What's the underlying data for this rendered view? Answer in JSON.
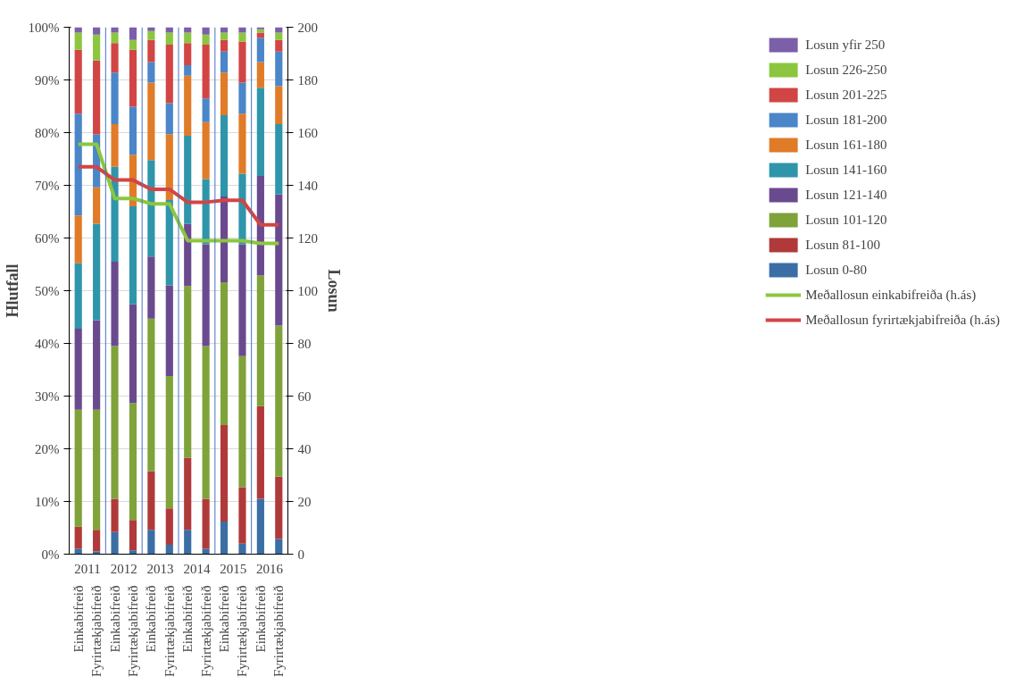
{
  "chart_data": {
    "type": "bar",
    "stacked": true,
    "ylabel": "Hlutfall",
    "y2label": "Losun",
    "categories": [
      "Einkabifreið",
      "Fyrirtækjabifreið",
      "Einkabifreið",
      "Fyrirtækjabifreið",
      "Einkabifreið",
      "Fyrirtækjabifreið",
      "Einkabifreið",
      "Fyrirtækjabifreið",
      "Einkabifreið",
      "Fyrirtækjabifreið",
      "Einkabifreið",
      "Fyrirtækjabifreið"
    ],
    "annotations": [
      "2011",
      "2012",
      "2013",
      "2014",
      "2015",
      "2016"
    ],
    "ylim": [
      0,
      100
    ],
    "yticks": [
      {
        "value": 0,
        "label": "0%"
      },
      {
        "value": 10,
        "label": "10%"
      },
      {
        "value": 20,
        "label": "20%"
      },
      {
        "value": 30,
        "label": "30%"
      },
      {
        "value": 40,
        "label": "40%"
      },
      {
        "value": 50,
        "label": "50%"
      },
      {
        "value": 60,
        "label": "60%"
      },
      {
        "value": 70,
        "label": "70%"
      },
      {
        "value": 80,
        "label": "80%"
      },
      {
        "value": 90,
        "label": "90%"
      },
      {
        "value": 100,
        "label": "100%"
      }
    ],
    "y2lim": [
      0,
      200
    ],
    "y2ticks": [
      0,
      20,
      40,
      60,
      80,
      100,
      120,
      140,
      160,
      180,
      200
    ],
    "grid": "y",
    "legend": "right",
    "series": [
      {
        "name": "Losun 0-80",
        "color": "#3a6ea5",
        "values": [
          1,
          0.5,
          4.2,
          0.7,
          4.6,
          1.8,
          4.6,
          1,
          6.2,
          2,
          10.5,
          2.9
        ]
      },
      {
        "name": "Losun 81-100",
        "color": "#b03a3a",
        "values": [
          4.2,
          4.1,
          6.3,
          5.8,
          11.1,
          6.9,
          13.7,
          9.5,
          18.3,
          10.7,
          17.6,
          11.8
        ]
      },
      {
        "name": "Losun 101-120",
        "color": "#7fa23a",
        "values": [
          22.2,
          22.8,
          29,
          22.2,
          29,
          25.1,
          32.6,
          29,
          27.1,
          24.9,
          24.8,
          28.7
        ]
      },
      {
        "name": "Losun 121-140",
        "color": "#6a4a8f",
        "values": [
          15.4,
          17,
          16,
          18.7,
          11.8,
          17.2,
          11.8,
          19.3,
          16.3,
          21.2,
          18.9,
          24.9
        ]
      },
      {
        "name": "Losun 141-160",
        "color": "#2f95aa",
        "values": [
          12.4,
          18.3,
          18,
          18.6,
          18.3,
          16.2,
          16.7,
          12.4,
          15.4,
          13.4,
          16.7,
          13.3
        ]
      },
      {
        "name": "Losun 161-180",
        "color": "#e07b28",
        "values": [
          9.1,
          6.9,
          8.1,
          9.8,
          14.7,
          12.5,
          11.4,
          10.8,
          8.1,
          11.4,
          4.9,
          7.2
        ]
      },
      {
        "name": "Losun 181-200",
        "color": "#4a86c8",
        "values": [
          19.3,
          10.1,
          9.8,
          9.1,
          3.9,
          5.9,
          2,
          4.5,
          4,
          5.9,
          4.6,
          6.6
        ]
      },
      {
        "name": "Losun 201-225",
        "color": "#d24545",
        "values": [
          12.1,
          14,
          5.6,
          10.8,
          4.2,
          11.1,
          4.2,
          10.2,
          2.2,
          7.8,
          1,
          2.2
        ]
      },
      {
        "name": "Losun 226-250",
        "color": "#8cc63f",
        "values": [
          3.3,
          4.9,
          2,
          1.9,
          1.7,
          2.3,
          2,
          1.9,
          1.4,
          1.7,
          0.6,
          1.4
        ]
      },
      {
        "name": "Losun yfir 250",
        "color": "#7b5fa8",
        "values": [
          1,
          1.4,
          1,
          2.4,
          0.7,
          1,
          1,
          1.4,
          1,
          1,
          0.4,
          1
        ]
      },
      {
        "name": "Meðallosun einkabifreiða (h.ás)",
        "type": "line",
        "axis": "y2",
        "color": "#8cc63f",
        "values": [
          155.6,
          155.6,
          135,
          135,
          133,
          133,
          119,
          119,
          119,
          119,
          118,
          118
        ]
      },
      {
        "name": "Meðallosun fyrirtækjabifreiða (h.ás)",
        "type": "line",
        "axis": "y2",
        "color": "#d24545",
        "values": [
          147,
          147,
          142,
          142,
          138.5,
          138.5,
          133.6,
          133.6,
          134.3,
          134.3,
          125,
          125
        ]
      }
    ]
  }
}
